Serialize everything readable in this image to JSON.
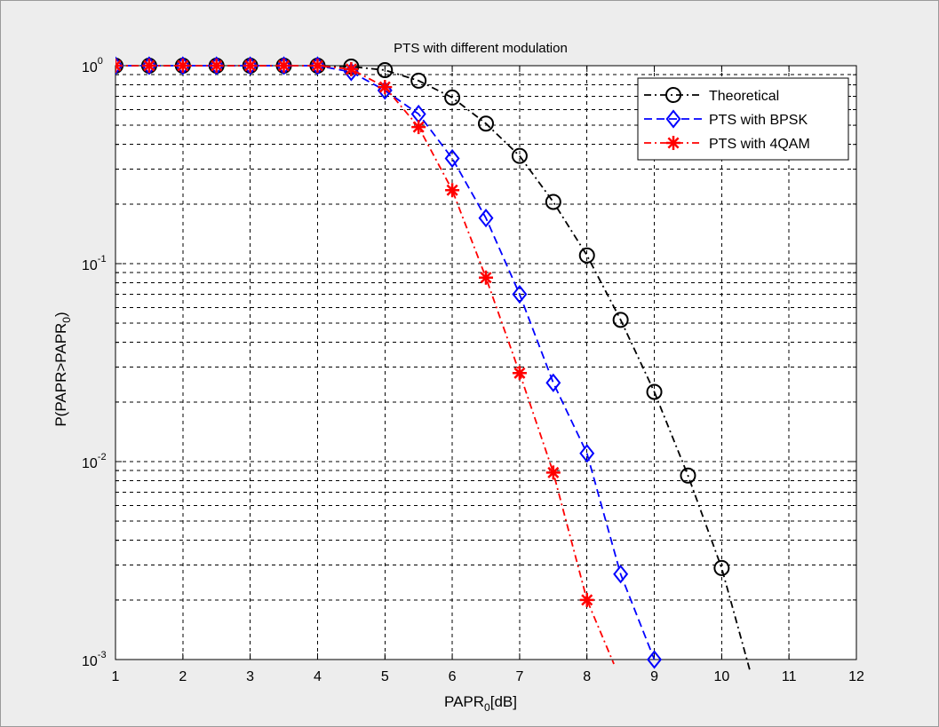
{
  "chart_data": {
    "type": "line",
    "title": "PTS with different modulation",
    "xlabel": {
      "base": "PAPR",
      "sub": "0",
      "rest": "[dB]"
    },
    "ylabel": {
      "base": "P(PAPR>PAPR",
      "sub": "0",
      "rest": ")"
    },
    "x_scale": "linear",
    "y_scale": "log",
    "xlim": [
      1,
      12
    ],
    "ylim": [
      0.001,
      1
    ],
    "x_ticks": [
      1,
      2,
      3,
      4,
      5,
      6,
      7,
      8,
      9,
      10,
      11,
      12
    ],
    "y_ticks": [
      {
        "value": 1,
        "base": "10",
        "exp": "0"
      },
      {
        "value": 0.1,
        "base": "10",
        "exp": "-1"
      },
      {
        "value": 0.01,
        "base": "10",
        "exp": "-2"
      },
      {
        "value": 0.001,
        "base": "10",
        "exp": "-3"
      }
    ],
    "grid": true,
    "legend_position": "top-right",
    "series": [
      {
        "name": "Theoretical",
        "color": "#000000",
        "line_style": "dash-dot",
        "marker": "circle",
        "x": [
          1,
          1.5,
          2,
          2.5,
          3,
          3.5,
          4,
          4.5,
          5,
          5.5,
          6,
          6.5,
          7,
          7.5,
          8,
          8.5,
          9,
          9.5,
          10,
          10.5
        ],
        "y": [
          1,
          1,
          1,
          1,
          1,
          1,
          1,
          0.99,
          0.95,
          0.84,
          0.69,
          0.51,
          0.35,
          0.205,
          0.11,
          0.052,
          0.0225,
          0.0085,
          0.0029,
          0.0007
        ]
      },
      {
        "name": "PTS with BPSK",
        "color": "#0000ff",
        "line_style": "dashed",
        "marker": "diamond",
        "x": [
          1,
          1.5,
          2,
          2.5,
          3,
          3.5,
          4,
          4.5,
          5,
          5.5,
          6,
          6.5,
          7,
          7.5,
          8,
          8.5,
          9
        ],
        "y": [
          1,
          1,
          1,
          1,
          1,
          1,
          1,
          0.93,
          0.75,
          0.57,
          0.34,
          0.17,
          0.07,
          0.025,
          0.011,
          0.0027,
          0.001
        ]
      },
      {
        "name": "PTS with 4QAM",
        "color": "#ff0000",
        "line_style": "dash-dot",
        "marker": "asterisk",
        "x": [
          1,
          1.5,
          2,
          2.5,
          3,
          3.5,
          4,
          4.5,
          5,
          5.5,
          6,
          6.5,
          7,
          7.5,
          8,
          8.4
        ],
        "y": [
          1,
          1,
          1,
          1,
          1,
          1,
          1,
          0.96,
          0.78,
          0.49,
          0.235,
          0.085,
          0.028,
          0.0088,
          0.002,
          0.00095
        ]
      }
    ]
  },
  "colors": {
    "window_bg": "#ededed",
    "axes_bg": "#ffffff",
    "grid": "#000000"
  }
}
